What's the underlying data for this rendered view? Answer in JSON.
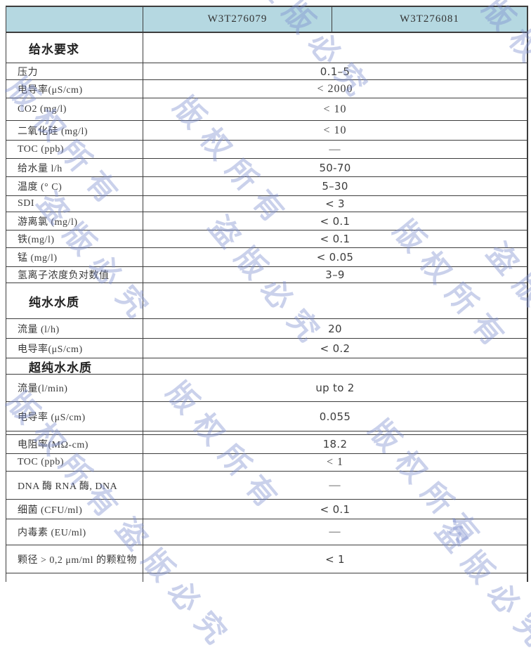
{
  "table": {
    "corner_label": "",
    "columns": [
      "W3T276079",
      "W3T276081"
    ]
  },
  "rows": [
    {
      "type": "section",
      "label": "给水要求",
      "value": ""
    },
    {
      "type": "data",
      "label": "压力",
      "value": "0.1–5",
      "value_font": "sans"
    },
    {
      "type": "data",
      "label": "电导率(μS/cm)",
      "value": "< 2000",
      "value_font": "serif"
    },
    {
      "type": "data",
      "label": "CO2 (mg/l)",
      "value": "< 10",
      "value_font": "serif"
    },
    {
      "type": "data",
      "label": "二氧化硅 (mg/l)",
      "value": "< 10",
      "value_font": "serif"
    },
    {
      "type": "data",
      "label": "TOC (ppb)",
      "value": "—",
      "value_font": "serif"
    },
    {
      "type": "data",
      "label": "给水量 l/h",
      "value": "50-70",
      "value_font": "sans"
    },
    {
      "type": "data",
      "label": "温度 (° C)",
      "value": "5–30",
      "value_font": "sans"
    },
    {
      "type": "data",
      "label": "SDI",
      "value": "< 3",
      "value_font": "sans"
    },
    {
      "type": "data",
      "label": "游离氯 (mg/l)",
      "value": "< 0.1",
      "value_font": "sans"
    },
    {
      "type": "data",
      "label": "铁(mg/l)",
      "value": "< 0.1",
      "value_font": "sans"
    },
    {
      "type": "data",
      "label": "锰 (mg/l)",
      "value": "< 0.05",
      "value_font": "sans"
    },
    {
      "type": "data",
      "label": "氢离子浓度负对数值",
      "value": "3–9",
      "value_font": "sans"
    },
    {
      "type": "section",
      "label": "纯水水质",
      "value": ""
    },
    {
      "type": "data",
      "label": "流量 (l/h)",
      "value": "20",
      "value_font": "sans"
    },
    {
      "type": "data",
      "label": "电导率(μS/cm)",
      "value": "< 0.2",
      "value_font": "sans"
    },
    {
      "type": "section",
      "label": "超纯水水质",
      "value": ""
    },
    {
      "type": "data",
      "label": "流量(l/min)",
      "value": "up to 2",
      "value_font": "sans"
    },
    {
      "type": "data",
      "label": "电导率 (μS/cm)",
      "value": "0.055",
      "value_font": "sans"
    },
    {
      "type": "divider",
      "label": "",
      "value": ""
    },
    {
      "type": "data",
      "label": "电阻率(MΩ-cm)",
      "value": "18.2",
      "value_font": "sans"
    },
    {
      "type": "data",
      "label": "TOC (ppb)",
      "value": "< 1",
      "value_font": "serif"
    },
    {
      "type": "data",
      "label": "DNA 酶 RNA 酶, DNA",
      "value": "—",
      "value_font": "serif"
    },
    {
      "type": "data",
      "label": "细菌 (CFU/ml)",
      "value": "< 0.1",
      "value_font": "sans"
    },
    {
      "type": "data",
      "label": "内毒素 (EU/ml)",
      "value": "—",
      "value_font": "serif"
    },
    {
      "type": "data",
      "label": "颗径 > 0,2 μm/ml 的颗粒物",
      "value": "< 1",
      "value_font": "sans"
    },
    {
      "type": "partial",
      "label": "",
      "value": ""
    }
  ],
  "watermark": {
    "texts": [
      "版权所有",
      "盗版必究"
    ],
    "color": "#7a8ccd"
  },
  "colors": {
    "header_bg": "#b5d8e1",
    "border": "#3d3d3d",
    "label_text": "#3a3a3a",
    "value_text": "#3c3c3c"
  }
}
